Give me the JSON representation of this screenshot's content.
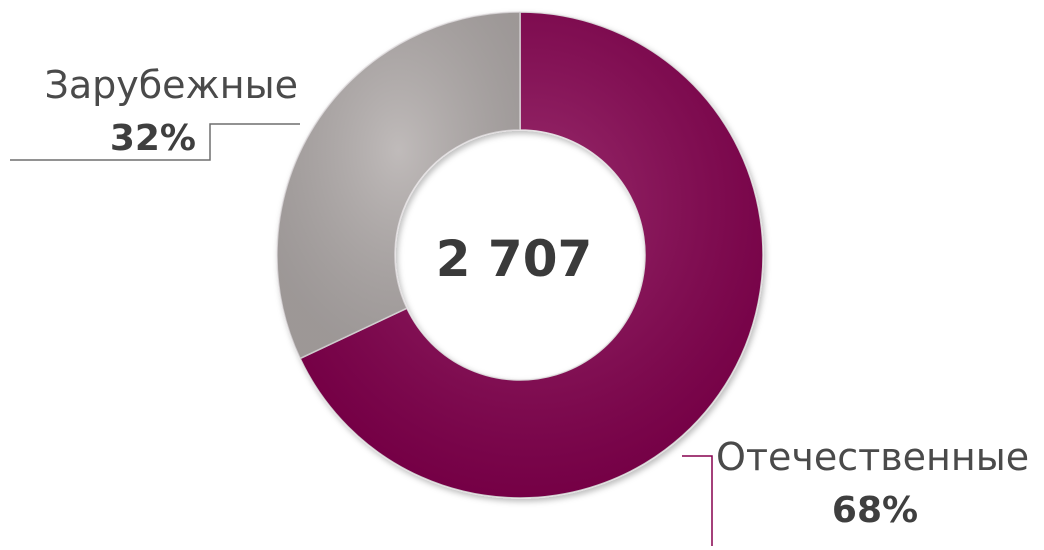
{
  "chart_data": {
    "type": "pie",
    "donut": true,
    "total_label": "2 707",
    "slices": [
      {
        "label": "Отечественные",
        "value": 68,
        "value_label": "68%",
        "color": "#85004f"
      },
      {
        "label": "Зарубежные",
        "value": 32,
        "value_label": "32%",
        "color": "#b2acab"
      }
    ]
  }
}
